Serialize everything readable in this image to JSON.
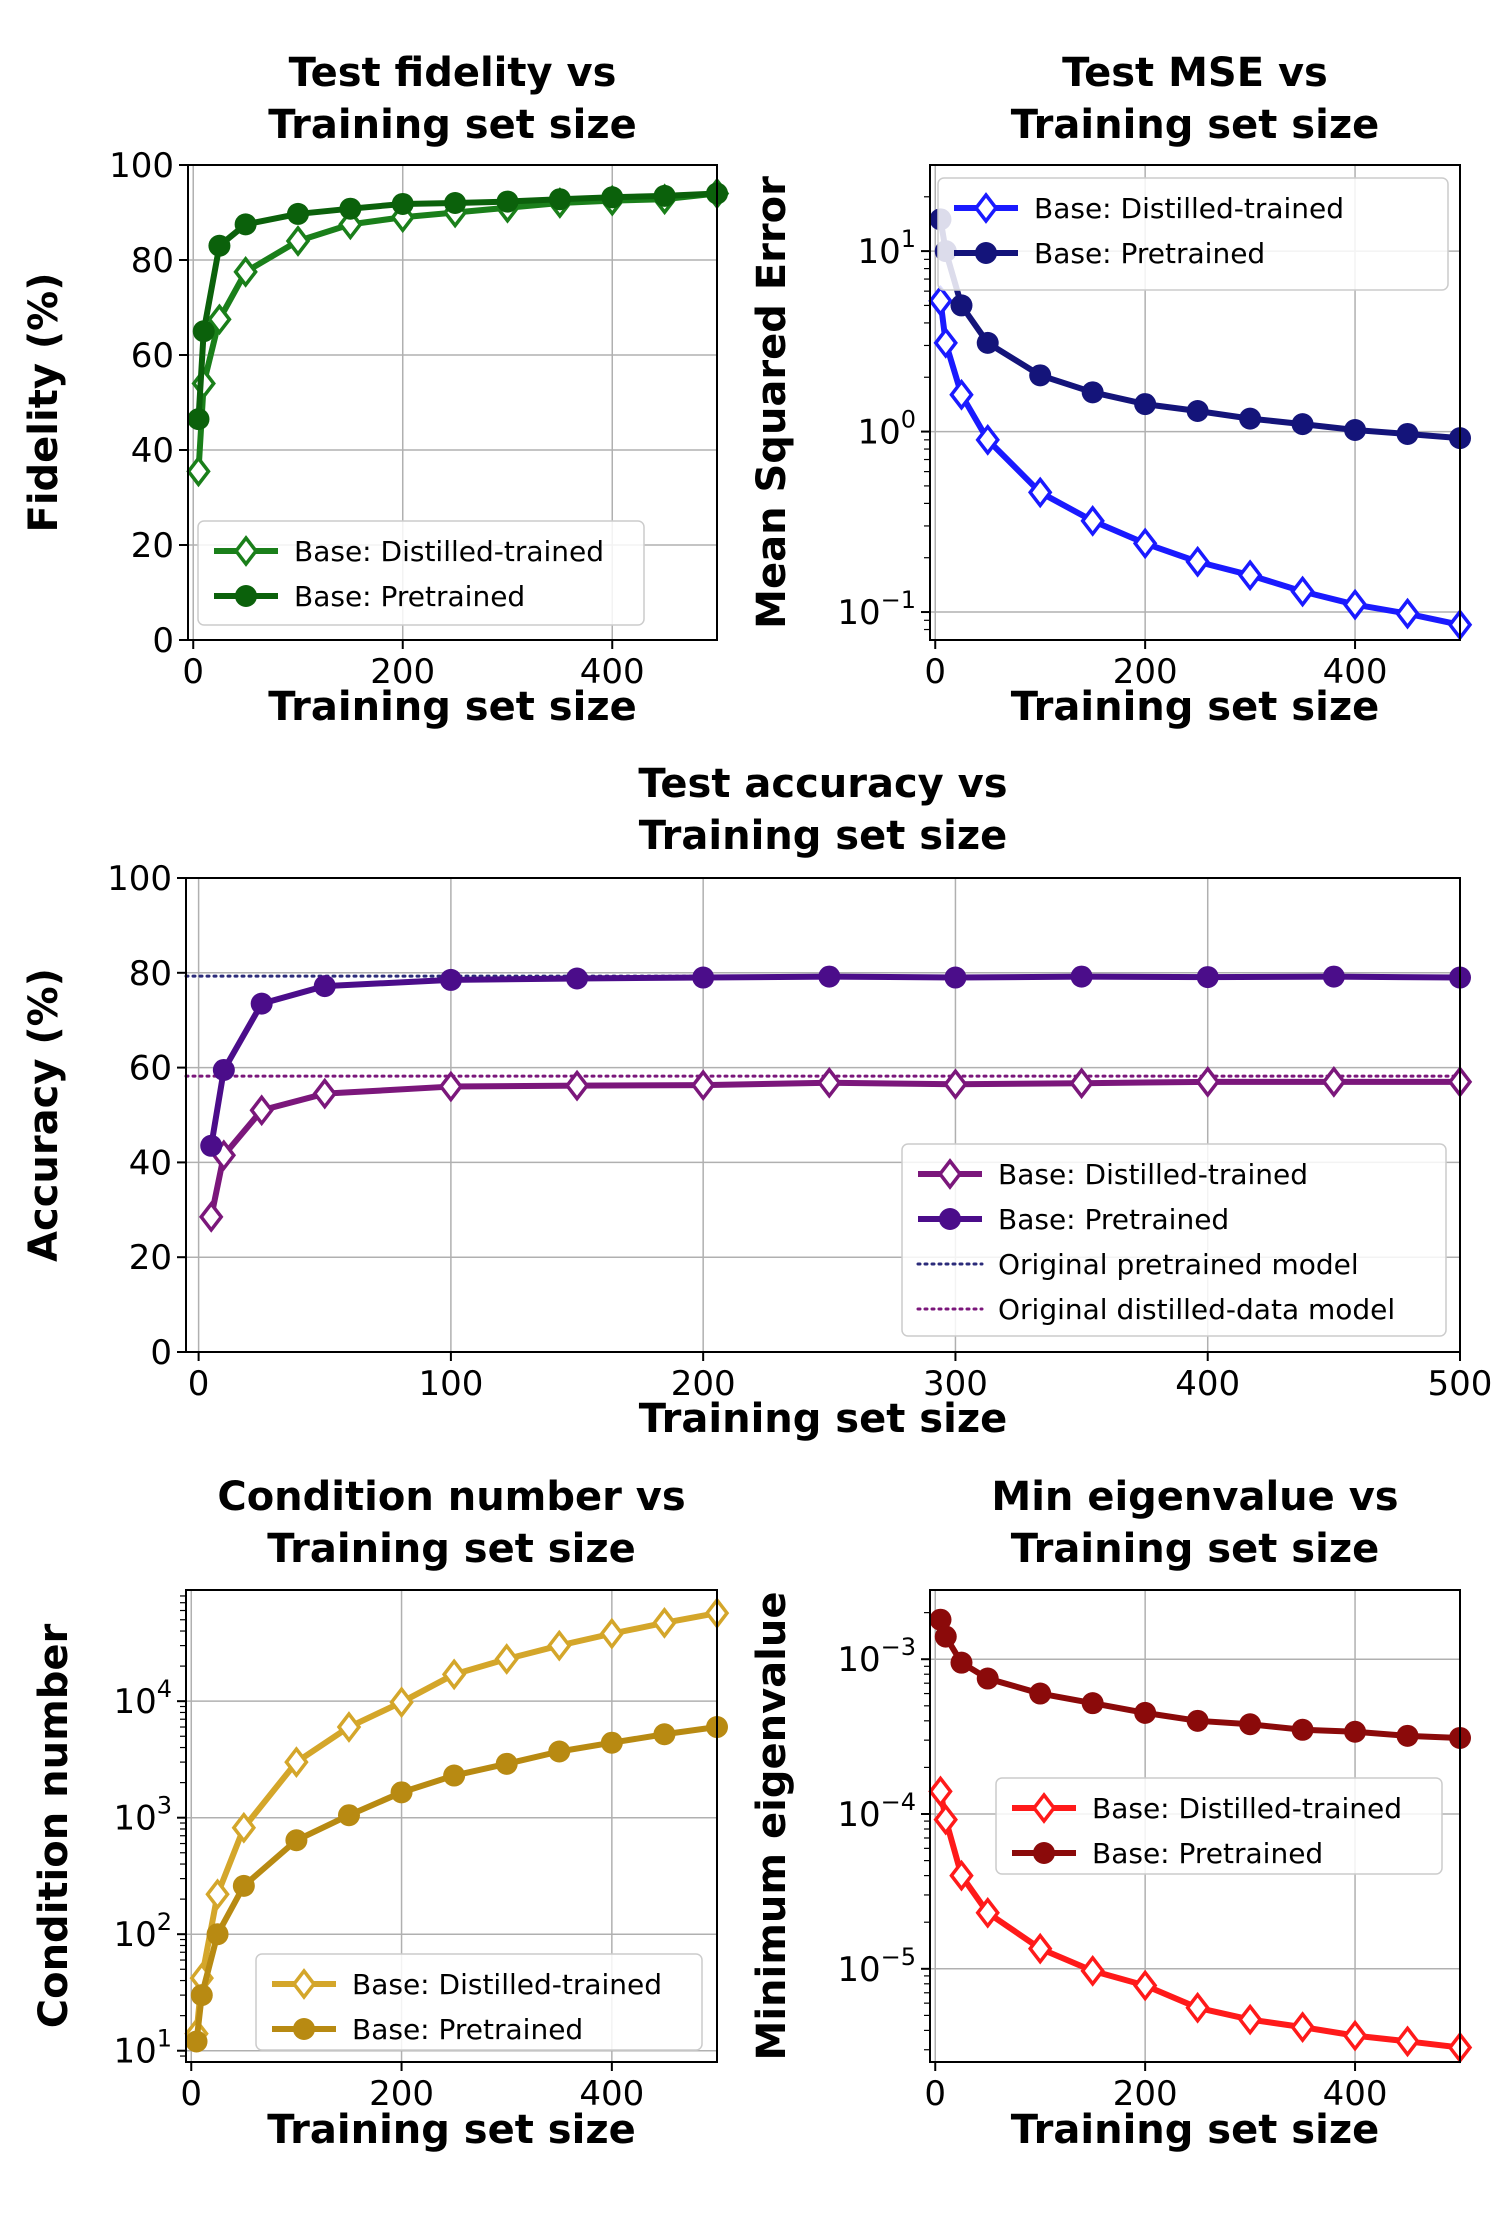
{
  "chart_data": [
    {
      "id": "fidelity",
      "type": "line",
      "title": [
        "Test fidelity vs",
        "Training set size"
      ],
      "xlabel": "Training set size",
      "ylabel": "Fidelity (%)",
      "xlim": [
        -5,
        500
      ],
      "ylim": [
        0,
        100
      ],
      "yscale": "linear",
      "xticks": [
        0,
        200,
        400
      ],
      "yticks": [
        0,
        20,
        40,
        60,
        80,
        100
      ],
      "yticklabels": [
        "0",
        "20",
        "40",
        "60",
        "80",
        "100"
      ],
      "grid": true,
      "legend_position": "lower-right",
      "x": [
        5,
        10,
        25,
        50,
        100,
        150,
        200,
        250,
        300,
        350,
        400,
        450,
        500
      ],
      "series": [
        {
          "name": "Base: Distilled-trained",
          "color": "#1a7f1a",
          "marker": "diamond-open",
          "values": [
            35.5,
            54,
            67.5,
            77.5,
            84,
            87.5,
            89,
            90,
            91,
            92,
            92.5,
            92.8,
            94
          ]
        },
        {
          "name": "Base: Pretrained",
          "color": "#0b610b",
          "marker": "circle",
          "values": [
            46.5,
            65,
            83,
            87.5,
            89.7,
            90.8,
            91.8,
            92,
            92.3,
            92.8,
            93.2,
            93.5,
            94
          ]
        }
      ]
    },
    {
      "id": "mse",
      "type": "line",
      "title": [
        "Test MSE vs",
        "Training set size"
      ],
      "xlabel": "Training set size",
      "ylabel": "Mean Squared Error",
      "xlim": [
        -5,
        500
      ],
      "ylim": [
        0.07,
        30
      ],
      "yscale": "log",
      "xticks": [
        0,
        200,
        400
      ],
      "yticks": [
        0.1,
        1,
        10
      ],
      "yticklabels": [
        "10^-1",
        "10^0",
        "10^1"
      ],
      "grid": true,
      "legend_position": "upper-right",
      "x": [
        5,
        10,
        25,
        50,
        100,
        150,
        200,
        250,
        300,
        350,
        400,
        450,
        500
      ],
      "series": [
        {
          "name": "Base: Distilled-trained",
          "color": "#1a1aff",
          "marker": "diamond-open",
          "values": [
            5.3,
            3.1,
            1.6,
            0.9,
            0.46,
            0.32,
            0.24,
            0.19,
            0.16,
            0.13,
            0.11,
            0.098,
            0.085
          ]
        },
        {
          "name": "Base: Pretrained",
          "color": "#14147a",
          "marker": "circle",
          "values": [
            15,
            10,
            5,
            3.1,
            2.05,
            1.65,
            1.42,
            1.3,
            1.18,
            1.1,
            1.02,
            0.97,
            0.92
          ]
        }
      ]
    },
    {
      "id": "accuracy",
      "type": "line",
      "title": [
        "Test accuracy vs",
        "Training set size"
      ],
      "xlabel": "Training set size",
      "ylabel": "Accuracy (%)",
      "xlim": [
        -5,
        500
      ],
      "ylim": [
        0,
        100
      ],
      "yscale": "linear",
      "xticks": [
        0,
        100,
        200,
        300,
        400,
        500
      ],
      "yticks": [
        0,
        20,
        40,
        60,
        80,
        100
      ],
      "yticklabels": [
        "0",
        "20",
        "40",
        "60",
        "80",
        "100"
      ],
      "grid": true,
      "legend_position": "lower-right",
      "x": [
        5,
        10,
        25,
        50,
        100,
        150,
        200,
        250,
        300,
        350,
        400,
        450,
        500
      ],
      "series": [
        {
          "name": "Base: Distilled-trained",
          "color": "#7b177b",
          "marker": "diamond-open",
          "values": [
            28.5,
            41.5,
            51,
            54.5,
            56,
            56.2,
            56.3,
            56.8,
            56.5,
            56.7,
            57,
            57,
            57
          ]
        },
        {
          "name": "Base: Pretrained",
          "color": "#4b0d8a",
          "marker": "circle",
          "values": [
            43.5,
            59.5,
            73.5,
            77.2,
            78.5,
            78.8,
            79,
            79.2,
            79,
            79.2,
            79.1,
            79.2,
            79
          ]
        }
      ],
      "reference_lines": [
        {
          "name": "Original pretrained model",
          "color": "#2b2b7a",
          "value": 79.3
        },
        {
          "name": "Original distilled-data model",
          "color": "#7b177b",
          "value": 58.2
        }
      ]
    },
    {
      "id": "condition",
      "type": "line",
      "title": [
        "Condition number vs",
        "Training set size"
      ],
      "xlabel": "Training set size",
      "ylabel": "Condition number",
      "xlim": [
        -5,
        500
      ],
      "ylim": [
        8,
        90000
      ],
      "yscale": "log",
      "xticks": [
        0,
        200,
        400
      ],
      "yticks": [
        10,
        100,
        1000,
        10000
      ],
      "yticklabels": [
        "10^1",
        "10^2",
        "10^3",
        "10^4"
      ],
      "grid": true,
      "legend_position": "lower-right",
      "x": [
        5,
        10,
        25,
        50,
        100,
        150,
        200,
        250,
        300,
        350,
        400,
        450,
        500
      ],
      "series": [
        {
          "name": "Base: Distilled-trained",
          "color": "#d4a62a",
          "marker": "diamond-open",
          "values": [
            14,
            42,
            220,
            820,
            3000,
            6000,
            9800,
            17000,
            23000,
            30000,
            38000,
            47000,
            57000
          ]
        },
        {
          "name": "Base: Pretrained",
          "color": "#b88a12",
          "marker": "circle",
          "values": [
            12,
            30,
            100,
            260,
            640,
            1050,
            1650,
            2300,
            2900,
            3700,
            4400,
            5200,
            6000
          ]
        }
      ]
    },
    {
      "id": "mineig",
      "type": "line",
      "title": [
        "Min eigenvalue vs",
        "Training set size"
      ],
      "xlabel": "Training set size",
      "ylabel": "Minimum eigenvalue",
      "xlim": [
        -5,
        500
      ],
      "ylim": [
        2.5e-06,
        0.0028
      ],
      "yscale": "log",
      "xticks": [
        0,
        200,
        400
      ],
      "yticks": [
        1e-05,
        0.0001,
        0.001
      ],
      "yticklabels": [
        "10^-5",
        "10^-4",
        "10^-3"
      ],
      "grid": true,
      "legend_position": "center-right",
      "x": [
        5,
        10,
        25,
        50,
        100,
        150,
        200,
        250,
        300,
        350,
        400,
        450,
        500
      ],
      "series": [
        {
          "name": "Base: Distilled-trained",
          "color": "#ff1a1a",
          "marker": "diamond-open",
          "values": [
            0.00014,
            9.2e-05,
            4e-05,
            2.3e-05,
            1.35e-05,
            9.7e-06,
            7.8e-06,
            5.6e-06,
            4.7e-06,
            4.2e-06,
            3.7e-06,
            3.4e-06,
            3.1e-06
          ]
        },
        {
          "name": "Base: Pretrained",
          "color": "#8b0a0a",
          "marker": "circle",
          "values": [
            0.0018,
            0.0014,
            0.00095,
            0.00075,
            0.0006,
            0.00052,
            0.00045,
            0.0004,
            0.00038,
            0.00035,
            0.00034,
            0.00032,
            0.00031
          ]
        }
      ]
    }
  ]
}
